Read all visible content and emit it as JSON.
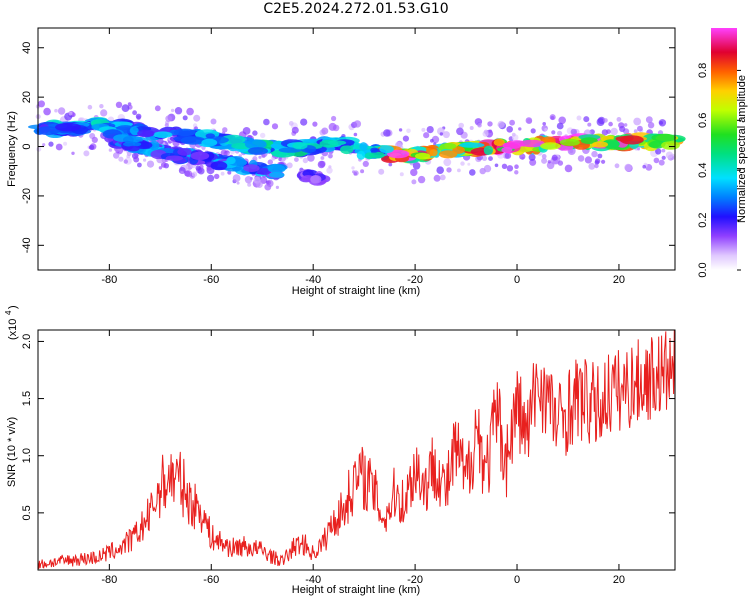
{
  "title": "C2E5.2024.272.01.53.G10",
  "colors": {
    "snr_line": "#e8201e",
    "spectrogram_scale": [
      "#ffffff",
      "#e8d0ff",
      "#b070ff",
      "#8a2be2",
      "#2020ff",
      "#00e0ff",
      "#00e070",
      "#c0ff00",
      "#ffd000",
      "#ff5000",
      "#e00020",
      "#ff50ff"
    ]
  },
  "chart_data": [
    {
      "type": "heatmap",
      "name": "spectrogram",
      "xlabel": "Height of straight line (km)",
      "ylabel": "Frequency (Hz)",
      "xlim": [
        -94,
        31
      ],
      "ylim": [
        -50,
        48
      ],
      "x_ticks": [
        "-80",
        "-60",
        "-40",
        "-20",
        "0",
        "20"
      ],
      "x_tick_values": [
        -80,
        -60,
        -40,
        -20,
        0,
        20
      ],
      "y_ticks": [
        "-40",
        "-20",
        "0",
        "20",
        "40"
      ],
      "y_tick_values": [
        -40,
        -20,
        0,
        20,
        40
      ],
      "colorbar": {
        "label": "Normalized spectral amplitude",
        "range": [
          0,
          0.97
        ],
        "ticks": [
          "0.0",
          "0.2",
          "0.4",
          "0.6",
          "0.8"
        ],
        "tick_values": [
          0.0,
          0.2,
          0.4,
          0.6,
          0.8
        ]
      },
      "main_track": {
        "x": [
          -94,
          -88,
          -82,
          -76,
          -70,
          -64,
          -58,
          -52,
          -46,
          -40,
          -34,
          -30,
          -26,
          -24,
          -18,
          -12,
          -6,
          0,
          6,
          12,
          18,
          24,
          31
        ],
        "freq": [
          7,
          7,
          9,
          7,
          5,
          4,
          2,
          0,
          -1,
          0,
          1,
          -2,
          -2,
          -4,
          -3,
          -1,
          0,
          0,
          1,
          2,
          2,
          2,
          2
        ],
        "amp": [
          0.3,
          0.35,
          0.38,
          0.32,
          0.3,
          0.3,
          0.32,
          0.36,
          0.4,
          0.38,
          0.4,
          0.35,
          0.45,
          0.9,
          0.7,
          0.6,
          0.75,
          0.9,
          0.7,
          0.85,
          0.8,
          0.75,
          0.6
        ]
      },
      "secondary_track": {
        "x": [
          -80,
          -74,
          -68,
          -62,
          -56,
          -50,
          -46
        ],
        "freq": [
          4,
          0,
          -3,
          -5,
          -7,
          -10,
          -10
        ],
        "amp": [
          0.25,
          0.3,
          0.3,
          0.28,
          0.3,
          0.3,
          0.25
        ]
      },
      "lower_branch": {
        "x": [
          -42,
          -40,
          -38
        ],
        "freq": [
          -12,
          -12,
          -14
        ],
        "amp": [
          0.15,
          0.2,
          0.15
        ]
      }
    },
    {
      "type": "line",
      "name": "snr",
      "xlabel": "Height of straight line (km)",
      "ylabel": "SNR (10 * v/v)",
      "scale_label": "(x10",
      "scale_exponent": "4",
      "xlim": [
        -94,
        31
      ],
      "ylim": [
        0,
        2.1
      ],
      "x_ticks": [
        "-80",
        "-60",
        "-40",
        "-20",
        "0",
        "20"
      ],
      "x_tick_values": [
        -80,
        -60,
        -40,
        -20,
        0,
        20
      ],
      "y_ticks": [
        "0.5",
        "1.0",
        "1.5",
        "2.0"
      ],
      "y_tick_values": [
        0.5,
        1.0,
        1.5,
        2.0
      ],
      "series": [
        {
          "x": [
            -94,
            -90,
            -86,
            -82,
            -78,
            -75,
            -72,
            -70,
            -68,
            -66,
            -64,
            -62,
            -60,
            -58,
            -56,
            -54,
            -52,
            -50,
            -48,
            -46,
            -44,
            -42,
            -40,
            -38,
            -36,
            -34,
            -32,
            -30,
            -28,
            -26,
            -24,
            -22,
            -20,
            -18,
            -16,
            -14,
            -12,
            -10,
            -8,
            -6,
            -4,
            -2,
            0,
            2,
            4,
            6,
            8,
            10,
            12,
            14,
            16,
            18,
            20,
            22,
            24,
            26,
            28,
            31
          ],
          "y": [
            0.05,
            0.08,
            0.1,
            0.12,
            0.2,
            0.3,
            0.5,
            0.75,
            0.85,
            0.8,
            0.6,
            0.55,
            0.3,
            0.25,
            0.2,
            0.22,
            0.2,
            0.18,
            0.12,
            0.08,
            0.2,
            0.25,
            0.15,
            0.25,
            0.45,
            0.55,
            0.8,
            0.85,
            0.7,
            0.45,
            0.7,
            0.6,
            0.95,
            0.75,
            1.0,
            0.7,
            1.1,
            0.8,
            1.3,
            0.9,
            1.4,
            1.0,
            1.5,
            1.2,
            1.7,
            1.55,
            1.3,
            1.45,
            1.55,
            1.5,
            1.45,
            1.6,
            1.6,
            1.65,
            1.68,
            1.72,
            1.75,
            1.78
          ]
        }
      ]
    }
  ]
}
